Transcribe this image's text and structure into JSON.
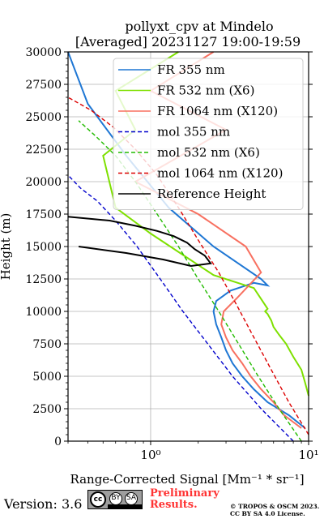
{
  "chart_data": {
    "type": "line",
    "title": "pollyxt_cpv at Mindelo",
    "subtitle": "[Averaged] 20231127 19:00-19:59",
    "xlabel": "Range-Corrected Signal [Mm⁻¹ * sr⁻¹]",
    "ylabel": "Height (m)",
    "x_scale": "log",
    "xlim": [
      0.3,
      10
    ],
    "ylim": [
      0,
      30000
    ],
    "x_ticks": [
      1,
      10
    ],
    "x_tick_labels": [
      "10⁰",
      "10¹"
    ],
    "y_ticks": [
      0,
      2500,
      5000,
      7500,
      10000,
      12500,
      15000,
      17500,
      20000,
      22500,
      25000,
      27500,
      30000
    ],
    "grid": true,
    "legend_position": "top-right",
    "series": [
      {
        "name": "FR 355 nm",
        "color": "#1f77d4",
        "style": "solid",
        "x": [
          9.5,
          7.5,
          5.5,
          4.5,
          3.8,
          3.3,
          3.0,
          2.8,
          2.6,
          2.5,
          2.6,
          3.2,
          4.5,
          5.5,
          5.0,
          2.5,
          1.3,
          0.7,
          0.4,
          0.3
        ],
        "y": [
          1000,
          2000,
          3000,
          4000,
          5000,
          6000,
          7000,
          8000,
          9000,
          10000,
          10800,
          11600,
          12200,
          12000,
          12500,
          15000,
          18000,
          22000,
          26000,
          30000
        ]
      },
      {
        "name": "FR 532 nm (X6)",
        "color": "#7ee000",
        "style": "solid",
        "x": [
          10,
          9.5,
          9.0,
          8.0,
          7.2,
          6.5,
          6.0,
          5.8,
          5.5,
          5.3,
          5.5,
          4.5,
          2.5,
          1.0,
          0.6,
          0.5,
          0.8,
          0.6,
          1.5
        ],
        "y": [
          3500,
          4500,
          5500,
          6500,
          7500,
          8200,
          8800,
          9300,
          9800,
          10000,
          10200,
          11800,
          12800,
          16000,
          18000,
          22000,
          24000,
          27000,
          30000
        ]
      },
      {
        "name": "FR 1064 nm (X120)",
        "color": "#f87060",
        "style": "solid",
        "x": [
          9.0,
          7.0,
          6.0,
          5.0,
          4.3,
          3.8,
          3.3,
          3.0,
          2.8,
          2.9,
          3.5,
          5.0,
          4.0,
          2.0,
          0.8,
          3.0,
          1.0,
          2.5
        ],
        "y": [
          1000,
          2000,
          3000,
          4000,
          5000,
          6000,
          7000,
          8000,
          9000,
          10000,
          11000,
          13000,
          15000,
          17500,
          20000,
          24000,
          27000,
          30000
        ]
      },
      {
        "name": "mol 355 nm",
        "color": "#0000cc",
        "style": "dashed",
        "x": [
          8.0,
          5.0,
          3.3,
          2.3,
          1.6,
          1.15,
          0.82,
          0.6,
          0.46,
          0.36,
          0.3
        ],
        "y": [
          0,
          2500,
          5000,
          7500,
          10000,
          12500,
          15000,
          17000,
          18500,
          19500,
          20500
        ]
      },
      {
        "name": "mol 532 nm (X6)",
        "color": "#22bb00",
        "style": "dashed",
        "x": [
          9.0,
          6.5,
          4.8,
          3.6,
          2.7,
          2.0,
          1.5,
          1.1,
          0.8,
          0.6,
          0.45,
          0.35
        ],
        "y": [
          0,
          2500,
          5000,
          7500,
          10000,
          12500,
          15000,
          17500,
          20000,
          22000,
          23500,
          24700
        ]
      },
      {
        "name": "mol 1064 nm (X120)",
        "color": "#dd0000",
        "style": "dashed",
        "x": [
          10,
          7.5,
          5.8,
          4.5,
          3.5,
          2.7,
          2.0,
          1.5,
          1.1,
          0.8,
          0.58,
          0.42,
          0.3
        ],
        "y": [
          500,
          3000,
          5500,
          8000,
          10500,
          13000,
          15500,
          18000,
          20500,
          22500,
          24200,
          25500,
          26500
        ]
      },
      {
        "name": "Reference Height",
        "color": "#000000",
        "style": "solid",
        "x": [
          0.3,
          0.55,
          0.8,
          1.1,
          1.4,
          1.7,
          1.9,
          2.2,
          2.4,
          1.8,
          1.2,
          0.7,
          0.35
        ],
        "y": [
          17300,
          17000,
          16600,
          16200,
          15800,
          15300,
          14800,
          14300,
          13700,
          13500,
          14000,
          14500,
          15000
        ]
      }
    ]
  },
  "footer": {
    "version": "Version: 3.6",
    "license_badge": {
      "cc": "cc",
      "by": "BY",
      "sa": "SA"
    },
    "preliminary": [
      "Preliminary",
      "Results."
    ],
    "copyright": [
      "© TROPOS & OSCM 2023.",
      "CC BY SA 4.0 License."
    ]
  }
}
